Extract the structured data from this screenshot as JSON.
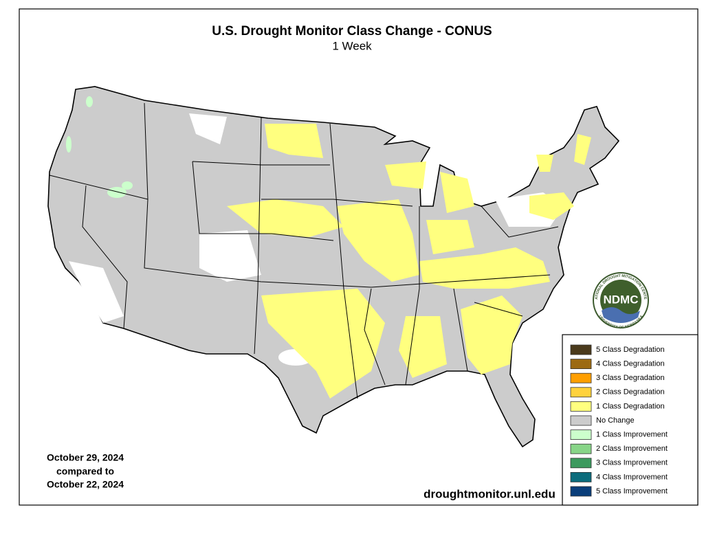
{
  "header": {
    "title": "U.S. Drought Monitor Class Change - CONUS",
    "subtitle": "1 Week"
  },
  "dates": [
    "October 29, 2024",
    "compared to",
    "October 22, 2024"
  ],
  "url": "droughtmonitor.unl.edu",
  "logo": {
    "label": "NDMC",
    "ring_top": "NATIONAL DROUGHT MITIGATION CENTER",
    "ring_bottom": "UNIVERSITY OF NEBRASKA"
  },
  "legend": [
    {
      "label": "5 Class Degradation",
      "color": "#4a3a1c"
    },
    {
      "label": "4 Class Degradation",
      "color": "#9c6a12"
    },
    {
      "label": "3 Class Degradation",
      "color": "#ff9f00"
    },
    {
      "label": "2 Class Degradation",
      "color": "#ffd23c"
    },
    {
      "label": "1 Class Degradation",
      "color": "#ffff7f"
    },
    {
      "label": "No Change",
      "color": "#cccccc"
    },
    {
      "label": "1 Class Improvement",
      "color": "#ccffcc"
    },
    {
      "label": "2 Class Improvement",
      "color": "#88d588"
    },
    {
      "label": "3 Class Improvement",
      "color": "#3c9a5e"
    },
    {
      "label": "4 Class Improvement",
      "color": "#0b6c7c"
    },
    {
      "label": "5 Class Improvement",
      "color": "#0a3e7a"
    }
  ]
}
